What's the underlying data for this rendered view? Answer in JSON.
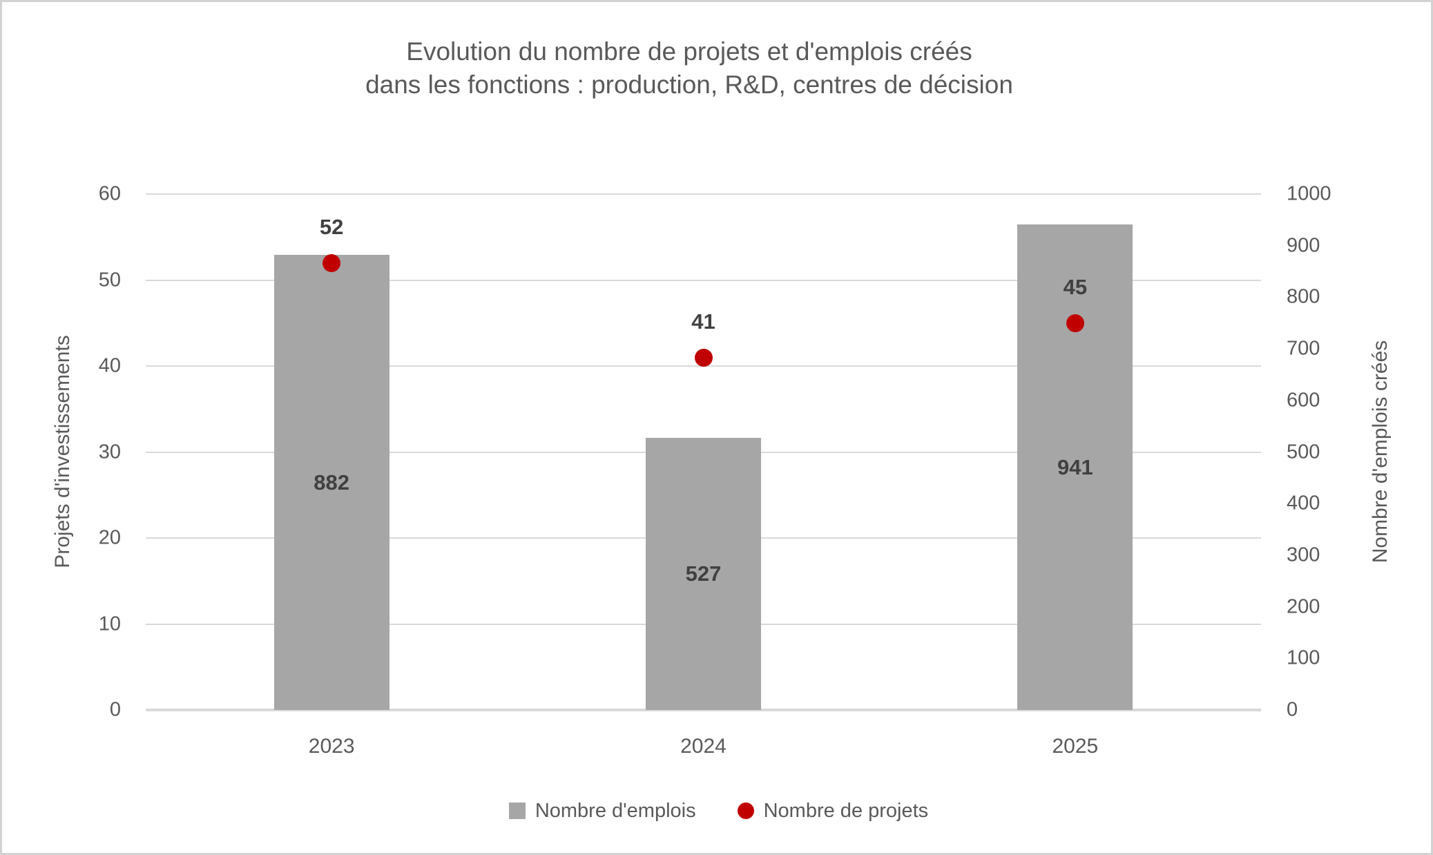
{
  "chart_data": {
    "type": "bar",
    "title_lines": [
      "Evolution du nombre de projets et d'emplois créés",
      "dans les fonctions : production, R&D, centres de décision"
    ],
    "categories": [
      "2023",
      "2024",
      "2025"
    ],
    "series": [
      {
        "name": "Nombre d'emplois",
        "type": "bar",
        "axis": "right",
        "color": "#a6a6a6",
        "values": [
          882,
          527,
          941
        ],
        "data_labels": [
          "882",
          "527",
          "941"
        ]
      },
      {
        "name": "Nombre de projets",
        "type": "scatter",
        "axis": "left",
        "color": "#c00000",
        "values": [
          52,
          41,
          45
        ],
        "data_labels": [
          "52",
          "41",
          "45"
        ]
      }
    ],
    "left_axis": {
      "title": "Projets d'investissements",
      "min": 0,
      "max": 60,
      "step": 10,
      "ticks": [
        "0",
        "10",
        "20",
        "30",
        "40",
        "50",
        "60"
      ]
    },
    "right_axis": {
      "title": "Nombre d'emplois créés",
      "min": 0,
      "max": 1000,
      "step": 100,
      "ticks": [
        "0",
        "100",
        "200",
        "300",
        "400",
        "500",
        "600",
        "700",
        "800",
        "900",
        "1000"
      ]
    },
    "grid": true,
    "legend_position": "bottom",
    "colors": {
      "bar": "#a6a6a6",
      "marker": "#c00000",
      "gridline": "#d9d9d9",
      "text": "#595959",
      "data_label": "#404040",
      "frame_border": "#d2d2d2",
      "background": "#ffffff"
    }
  }
}
